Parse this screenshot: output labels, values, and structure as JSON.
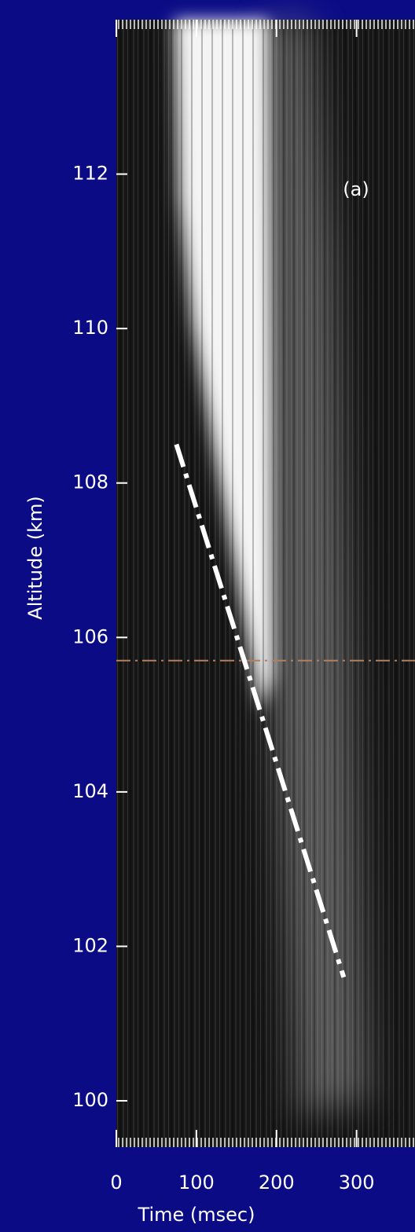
{
  "chart_data": {
    "type": "line",
    "xlabel": "Time (msec)",
    "ylabel": "Altitude (km)",
    "annotation": "(a)",
    "xlim": [
      0,
      373
    ],
    "ylim": [
      99.4,
      114
    ],
    "xticks": [
      0,
      100,
      200,
      300
    ],
    "yticks": [
      100,
      102,
      104,
      106,
      108,
      110,
      112
    ],
    "series": [
      {
        "x": [
          75,
          284
        ],
        "values": [
          108.5,
          101.6
        ],
        "color": "#ffffff"
      }
    ],
    "hlines": [
      {
        "value": 105.7,
        "color": "#b08060"
      }
    ]
  }
}
